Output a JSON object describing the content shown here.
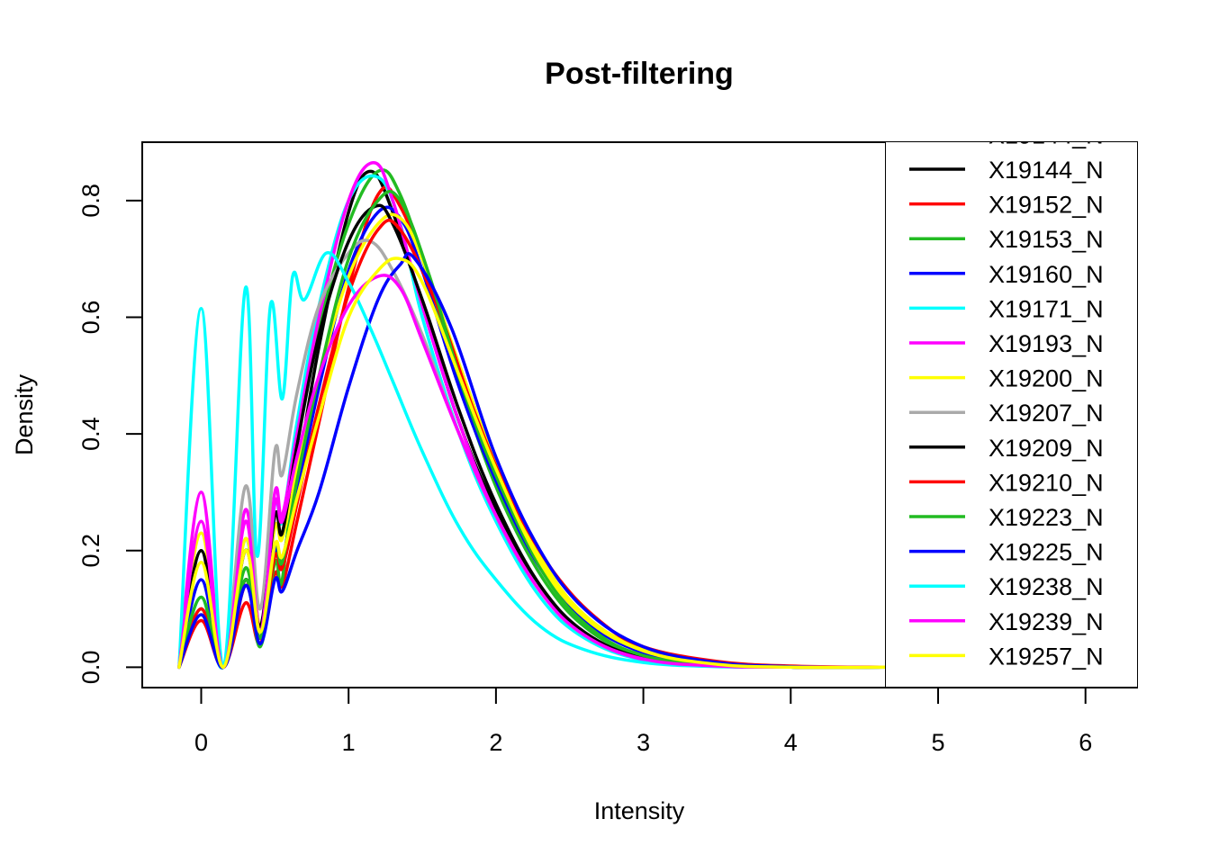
{
  "chart_data": {
    "type": "line",
    "title": "Post-filtering",
    "xlabel": "Intensity",
    "ylabel": "Density",
    "xlim": [
      -0.4,
      6.35
    ],
    "ylim": [
      -0.035,
      0.9
    ],
    "xticks": [
      0,
      1,
      2,
      3,
      4,
      5,
      6
    ],
    "yticks": [
      0.0,
      0.2,
      0.4,
      0.6,
      0.8
    ],
    "xtick_labels": [
      "0",
      "1",
      "2",
      "3",
      "4",
      "5",
      "6"
    ],
    "ytick_labels": [
      "0.0",
      "0.2",
      "0.4",
      "0.6",
      "0.8"
    ],
    "grid": false,
    "legend_position": "right, overlapping plot area, clipped at top",
    "legend_partial_entry": "X19144_N",
    "legend": [
      "X19144_N",
      "X19152_N",
      "X19153_N",
      "X19160_N",
      "X19171_N",
      "X19193_N",
      "X19200_N",
      "X19207_N",
      "X19209_N",
      "X19210_N",
      "X19223_N",
      "X19225_N",
      "X19238_N",
      "X19239_N",
      "X19257_N"
    ],
    "series": [
      {
        "name": "X19144_N",
        "color": "#000000",
        "x": [
          -0.15,
          0.0,
          0.15,
          0.3,
          0.4,
          0.5,
          0.55,
          0.65,
          0.8,
          1.0,
          1.15,
          1.3,
          1.5,
          1.75,
          2.0,
          2.3,
          2.6,
          3.0,
          3.5,
          4.0,
          4.65
        ],
        "y": [
          0.0,
          0.1,
          0.0,
          0.15,
          0.05,
          0.2,
          0.18,
          0.33,
          0.55,
          0.78,
          0.85,
          0.78,
          0.62,
          0.42,
          0.27,
          0.14,
          0.06,
          0.015,
          0.002,
          0.0,
          0.0
        ]
      },
      {
        "name": "X19152_N",
        "color": "#ff0000",
        "x": [
          -0.15,
          0.0,
          0.15,
          0.3,
          0.4,
          0.5,
          0.55,
          0.65,
          0.8,
          1.0,
          1.2,
          1.35,
          1.6,
          1.85,
          2.1,
          2.4,
          2.7,
          3.0,
          3.5,
          4.0,
          4.65
        ],
        "y": [
          0.0,
          0.08,
          0.0,
          0.11,
          0.04,
          0.16,
          0.14,
          0.25,
          0.42,
          0.65,
          0.81,
          0.79,
          0.63,
          0.43,
          0.28,
          0.16,
          0.08,
          0.035,
          0.008,
          0.001,
          0.0
        ]
      },
      {
        "name": "X19153_N",
        "color": "#22bb22",
        "x": [
          -0.15,
          0.0,
          0.15,
          0.3,
          0.4,
          0.5,
          0.55,
          0.65,
          0.8,
          1.0,
          1.2,
          1.35,
          1.55,
          1.8,
          2.05,
          2.35,
          2.65,
          3.0,
          3.5,
          4.0,
          4.65
        ],
        "y": [
          0.0,
          0.1,
          0.0,
          0.15,
          0.035,
          0.18,
          0.15,
          0.38,
          0.58,
          0.76,
          0.85,
          0.81,
          0.66,
          0.45,
          0.28,
          0.14,
          0.06,
          0.02,
          0.003,
          0.0,
          0.0
        ]
      },
      {
        "name": "X19160_N",
        "color": "#0000ff",
        "x": [
          -0.15,
          0.0,
          0.15,
          0.3,
          0.4,
          0.5,
          0.55,
          0.65,
          0.8,
          1.0,
          1.2,
          1.35,
          1.5,
          1.75,
          2.0,
          2.3,
          2.6,
          3.0,
          3.5,
          4.0,
          4.65
        ],
        "y": [
          0.0,
          0.15,
          0.0,
          0.14,
          0.05,
          0.2,
          0.18,
          0.3,
          0.48,
          0.68,
          0.78,
          0.77,
          0.68,
          0.48,
          0.32,
          0.17,
          0.08,
          0.025,
          0.005,
          0.0,
          0.0
        ]
      },
      {
        "name": "X19171_N",
        "color": "#00ffff",
        "x": [
          -0.15,
          0.0,
          0.15,
          0.3,
          0.4,
          0.5,
          0.55,
          0.65,
          0.8,
          1.0,
          1.2,
          1.35,
          1.5,
          1.75,
          2.0,
          2.3,
          2.6,
          3.0,
          3.5,
          4.0,
          4.65
        ],
        "y": [
          0.0,
          0.12,
          0.0,
          0.22,
          0.06,
          0.28,
          0.25,
          0.42,
          0.62,
          0.8,
          0.84,
          0.76,
          0.6,
          0.4,
          0.25,
          0.12,
          0.05,
          0.012,
          0.002,
          0.0,
          0.0
        ]
      },
      {
        "name": "X19193_N",
        "color": "#ff00ff",
        "x": [
          -0.15,
          0.0,
          0.15,
          0.3,
          0.4,
          0.5,
          0.55,
          0.65,
          0.8,
          1.0,
          1.17,
          1.3,
          1.5,
          1.75,
          2.0,
          2.3,
          2.6,
          3.0,
          3.5,
          4.0,
          4.65
        ],
        "y": [
          0.0,
          0.3,
          0.0,
          0.27,
          0.07,
          0.3,
          0.26,
          0.4,
          0.6,
          0.8,
          0.865,
          0.8,
          0.62,
          0.42,
          0.26,
          0.13,
          0.055,
          0.013,
          0.002,
          0.0,
          0.0
        ]
      },
      {
        "name": "X19200_N",
        "color": "#ffff00",
        "x": [
          -0.15,
          0.0,
          0.15,
          0.3,
          0.4,
          0.5,
          0.55,
          0.65,
          0.8,
          1.0,
          1.2,
          1.35,
          1.5,
          1.75,
          2.0,
          2.3,
          2.6,
          3.0,
          3.5,
          4.0,
          4.65
        ],
        "y": [
          0.0,
          0.23,
          0.0,
          0.22,
          0.07,
          0.24,
          0.22,
          0.34,
          0.5,
          0.67,
          0.76,
          0.77,
          0.7,
          0.52,
          0.35,
          0.19,
          0.09,
          0.03,
          0.006,
          0.0,
          0.0
        ]
      },
      {
        "name": "X19207_N",
        "color": "#aaaaaa",
        "x": [
          -0.15,
          0.0,
          0.15,
          0.3,
          0.4,
          0.5,
          0.55,
          0.65,
          0.8,
          1.0,
          1.15,
          1.3,
          1.5,
          1.75,
          2.0,
          2.3,
          2.6,
          3.0,
          3.5,
          4.0,
          4.65
        ],
        "y": [
          0.0,
          0.2,
          0.0,
          0.31,
          0.1,
          0.37,
          0.33,
          0.47,
          0.62,
          0.71,
          0.73,
          0.68,
          0.57,
          0.4,
          0.26,
          0.13,
          0.055,
          0.015,
          0.003,
          0.0,
          0.0
        ]
      },
      {
        "name": "X19209_N",
        "color": "#000000",
        "x": [
          -0.15,
          0.0,
          0.15,
          0.3,
          0.4,
          0.5,
          0.55,
          0.65,
          0.8,
          1.0,
          1.18,
          1.3,
          1.5,
          1.75,
          2.0,
          2.3,
          2.6,
          3.0,
          3.5,
          4.0,
          4.65
        ],
        "y": [
          0.0,
          0.2,
          0.0,
          0.2,
          0.07,
          0.26,
          0.23,
          0.38,
          0.57,
          0.73,
          0.79,
          0.76,
          0.63,
          0.44,
          0.28,
          0.14,
          0.06,
          0.015,
          0.002,
          0.0,
          0.0
        ]
      },
      {
        "name": "X19210_N",
        "color": "#ff0000",
        "x": [
          -0.15,
          0.0,
          0.15,
          0.3,
          0.4,
          0.5,
          0.55,
          0.65,
          0.8,
          1.0,
          1.2,
          1.35,
          1.6,
          1.85,
          2.1,
          2.4,
          2.7,
          3.0,
          3.5,
          4.0,
          4.65
        ],
        "y": [
          0.0,
          0.1,
          0.0,
          0.14,
          0.05,
          0.19,
          0.17,
          0.28,
          0.45,
          0.64,
          0.75,
          0.75,
          0.62,
          0.44,
          0.29,
          0.16,
          0.08,
          0.035,
          0.01,
          0.002,
          0.0
        ]
      },
      {
        "name": "X19223_N",
        "color": "#22bb22",
        "x": [
          -0.15,
          0.0,
          0.15,
          0.3,
          0.4,
          0.5,
          0.55,
          0.65,
          0.8,
          1.0,
          1.2,
          1.35,
          1.55,
          1.8,
          2.05,
          2.35,
          2.65,
          3.0,
          3.5,
          4.0,
          4.65
        ],
        "y": [
          0.0,
          0.12,
          0.0,
          0.17,
          0.05,
          0.21,
          0.18,
          0.32,
          0.5,
          0.7,
          0.8,
          0.8,
          0.67,
          0.46,
          0.3,
          0.15,
          0.065,
          0.02,
          0.004,
          0.0,
          0.0
        ]
      },
      {
        "name": "X19225_N",
        "color": "#0000ff",
        "x": [
          -0.15,
          0.0,
          0.15,
          0.3,
          0.4,
          0.5,
          0.55,
          0.65,
          0.8,
          1.0,
          1.2,
          1.35,
          1.45,
          1.7,
          2.0,
          2.3,
          2.6,
          3.0,
          3.5,
          4.0,
          4.65
        ],
        "y": [
          0.0,
          0.09,
          0.0,
          0.14,
          0.04,
          0.15,
          0.13,
          0.2,
          0.3,
          0.48,
          0.63,
          0.69,
          0.7,
          0.58,
          0.36,
          0.2,
          0.1,
          0.035,
          0.008,
          0.001,
          0.0
        ]
      },
      {
        "name": "X19238_N",
        "color": "#00ffff",
        "x": [
          -0.15,
          0.0,
          0.15,
          0.3,
          0.38,
          0.47,
          0.55,
          0.62,
          0.7,
          0.85,
          1.0,
          1.15,
          1.3,
          1.5,
          1.75,
          2.0,
          2.3,
          2.6,
          3.0,
          3.5,
          4.0,
          4.65
        ],
        "y": [
          0.0,
          0.615,
          0.0,
          0.65,
          0.19,
          0.62,
          0.46,
          0.67,
          0.63,
          0.71,
          0.66,
          0.58,
          0.49,
          0.37,
          0.24,
          0.15,
          0.07,
          0.03,
          0.008,
          0.001,
          0.0,
          0.0
        ]
      },
      {
        "name": "X19239_N",
        "color": "#ff00ff",
        "x": [
          -0.15,
          0.0,
          0.15,
          0.3,
          0.4,
          0.5,
          0.55,
          0.65,
          0.8,
          1.0,
          1.2,
          1.35,
          1.5,
          1.75,
          2.0,
          2.3,
          2.6,
          3.0,
          3.5,
          4.0,
          4.65
        ],
        "y": [
          0.0,
          0.25,
          0.0,
          0.25,
          0.06,
          0.28,
          0.25,
          0.36,
          0.5,
          0.62,
          0.67,
          0.65,
          0.56,
          0.4,
          0.26,
          0.13,
          0.055,
          0.014,
          0.002,
          0.0,
          0.0
        ]
      },
      {
        "name": "X19257_N",
        "color": "#ffff00",
        "x": [
          -0.15,
          0.0,
          0.15,
          0.3,
          0.4,
          0.5,
          0.55,
          0.65,
          0.8,
          1.0,
          1.2,
          1.35,
          1.5,
          1.75,
          2.0,
          2.3,
          2.6,
          3.0,
          3.5,
          4.0,
          4.65
        ],
        "y": [
          0.0,
          0.18,
          0.0,
          0.2,
          0.06,
          0.21,
          0.19,
          0.29,
          0.43,
          0.6,
          0.68,
          0.7,
          0.66,
          0.5,
          0.34,
          0.18,
          0.085,
          0.028,
          0.005,
          0.0,
          0.0
        ]
      }
    ]
  }
}
